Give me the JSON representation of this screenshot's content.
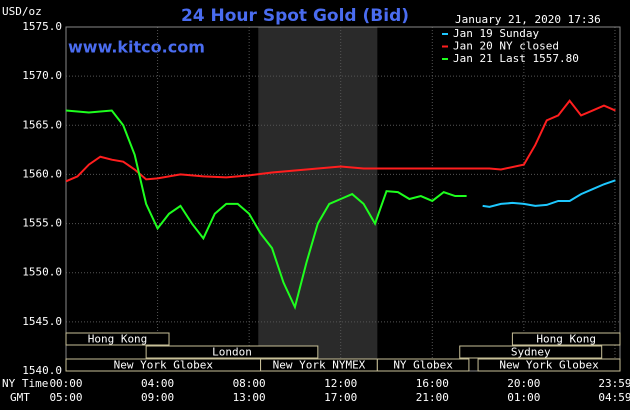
{
  "chart_data": {
    "type": "line",
    "title": "24 Hour Spot Gold (Bid)",
    "website": "www.kitco.com",
    "timestamp": "January 21, 2020 17:36",
    "y_label": "USD/oz",
    "x_label": "NY Time",
    "x2_label": "GMT",
    "xlim": [
      0,
      24.2
    ],
    "xticks": [
      {
        "value": 0,
        "label": "00:00"
      },
      {
        "value": 4,
        "label": "04:00"
      },
      {
        "value": 8,
        "label": "08:00"
      },
      {
        "value": 12,
        "label": "12:00"
      },
      {
        "value": 16,
        "label": "16:00"
      },
      {
        "value": 20,
        "label": "20:00"
      },
      {
        "value": 23.98,
        "label": "23:59"
      }
    ],
    "gmt_labels": [
      "05:00",
      "09:00",
      "13:00",
      "17:00",
      "21:00",
      "01:00",
      "04:59"
    ],
    "ylim": [
      1540,
      1575
    ],
    "yticks": [
      {
        "value": 1540,
        "label": "1540.0"
      },
      {
        "value": 1545,
        "label": "1545.0"
      },
      {
        "value": 1550,
        "label": "1550.0"
      },
      {
        "value": 1555,
        "label": "1555.0"
      },
      {
        "value": 1560,
        "label": "1560.0"
      },
      {
        "value": 1565,
        "label": "1565.0"
      },
      {
        "value": 1570,
        "label": "1570.0"
      },
      {
        "value": 1575,
        "label": "1575.0"
      }
    ],
    "grid": true,
    "shaded_x": [
      8.4,
      13.6
    ],
    "sessions": [
      "Hong Kong",
      "London",
      "New York Globex",
      "New York NYMEX",
      "NY Globex",
      "Hong Kong",
      "Sydney",
      "New York Globex"
    ],
    "series": [
      {
        "name": "Jan 19 Sunday",
        "color": "#1ec8ff",
        "x": [
          18.2,
          18.5,
          19,
          19.5,
          20,
          20.5,
          21,
          21.5,
          22,
          22.5,
          23,
          23.5,
          24
        ],
        "values": [
          1556.8,
          1556.7,
          1557,
          1557.1,
          1557,
          1556.8,
          1556.9,
          1557.3,
          1557.3,
          1558,
          1558.5,
          1559,
          1559.4
        ]
      },
      {
        "name": "Jan 20 NY closed",
        "color": "#ff1e1e",
        "x": [
          0,
          0.5,
          1,
          1.5,
          2,
          2.5,
          3,
          3.5,
          4,
          5,
          6,
          7,
          8,
          9,
          10,
          11,
          12,
          13,
          14,
          16,
          18.5,
          19,
          20,
          20.5,
          21,
          21.5,
          22,
          22.5,
          23,
          23.5,
          24
        ],
        "values": [
          1559.3,
          1559.8,
          1561,
          1561.8,
          1561.5,
          1561.3,
          1560.5,
          1559.5,
          1559.6,
          1560,
          1559.8,
          1559.7,
          1559.9,
          1560.2,
          1560.4,
          1560.6,
          1560.8,
          1560.6,
          1560.6,
          1560.6,
          1560.6,
          1560.5,
          1561,
          1563,
          1565.5,
          1566,
          1567.5,
          1566,
          1566.5,
          1567,
          1566.5
        ]
      },
      {
        "name": "Jan 21 Last 1557.80",
        "color": "#1eff1e",
        "x": [
          0,
          1,
          2,
          2.5,
          3,
          3.5,
          4,
          4.5,
          5,
          5.5,
          6,
          6.5,
          7,
          7.5,
          8,
          8.5,
          9,
          9.5,
          10,
          10.5,
          11,
          11.5,
          12,
          12.5,
          13,
          13.5,
          14,
          14.5,
          15,
          15.5,
          16,
          16.5,
          17,
          17.5
        ],
        "values": [
          1566.5,
          1566.3,
          1566.5,
          1565,
          1562,
          1557,
          1554.5,
          1556,
          1556.8,
          1555,
          1553.5,
          1556,
          1557,
          1557,
          1556,
          1554,
          1552.5,
          1549,
          1546.5,
          1551,
          1555,
          1557,
          1557.5,
          1558,
          1557,
          1555,
          1558.3,
          1558.2,
          1557.5,
          1557.8,
          1557.3,
          1558.2,
          1557.8,
          1557.8
        ]
      }
    ]
  }
}
